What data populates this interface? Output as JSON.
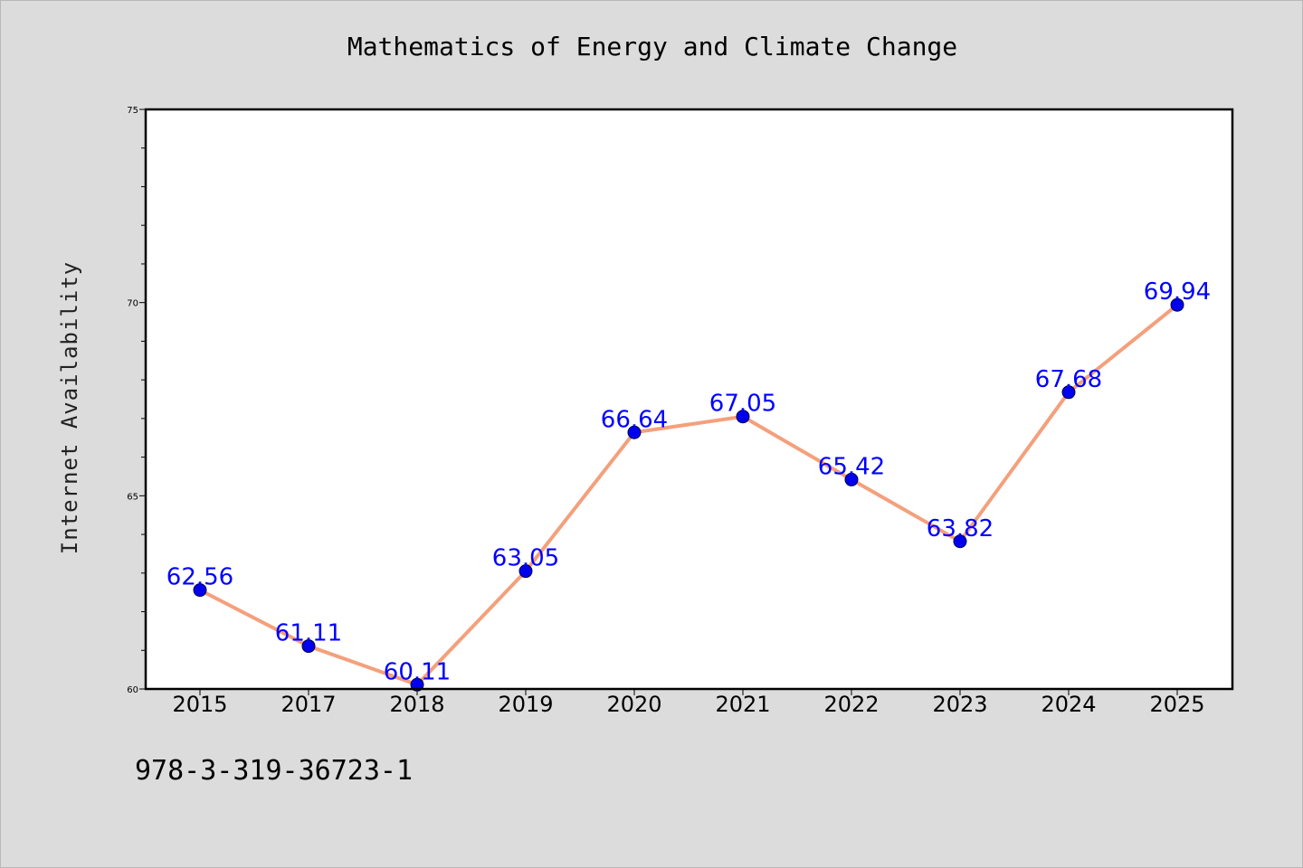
{
  "isbn": "978-3-319-36723-1",
  "chart_data": {
    "type": "line",
    "title": "Mathematics of Energy and Climate Change",
    "xlabel": "",
    "ylabel": "Internet Availability",
    "categories": [
      "2015",
      "2017",
      "2018",
      "2019",
      "2020",
      "2021",
      "2022",
      "2023",
      "2024",
      "2025"
    ],
    "values": [
      62.56,
      61.11,
      60.11,
      63.05,
      66.64,
      67.05,
      65.42,
      63.82,
      67.68,
      69.94
    ],
    "data_labels": [
      "62.56",
      "61.11",
      "60.11",
      "63.05",
      "66.64",
      "67.05",
      "65.42",
      "63.82",
      "67.68",
      "69.94"
    ],
    "ylim": [
      60,
      75
    ],
    "yticks": [
      60,
      65,
      70,
      75
    ],
    "grid": false,
    "legend": "none",
    "colors": {
      "line": "#f4a07c",
      "marker": "#0000ee",
      "label": "#0000ff",
      "plot_background": "#ffffff",
      "page_background": "#dcdcdc"
    }
  }
}
